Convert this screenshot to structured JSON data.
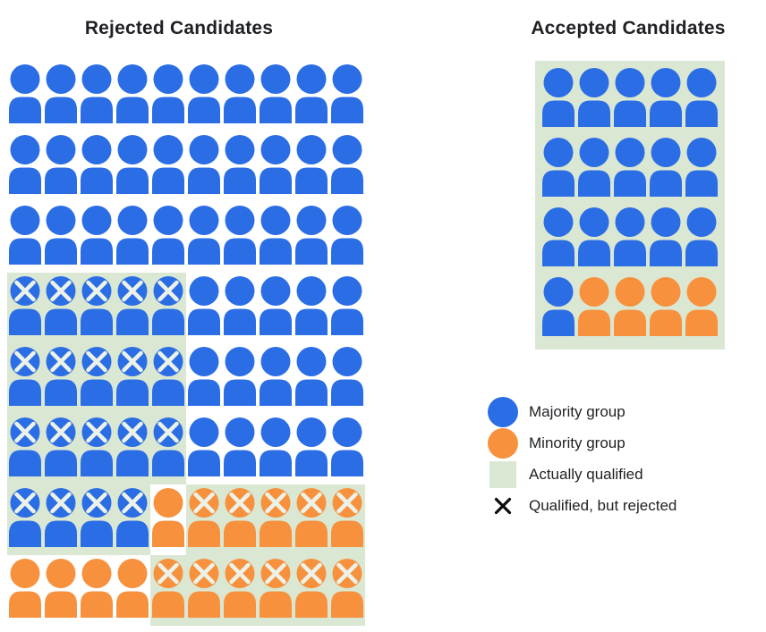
{
  "chart_data": {
    "type": "pictogram",
    "description": "Icon-array (waffle) chart comparing rejected vs accepted candidates by group membership and qualification",
    "panels": [
      {
        "key": "rejected",
        "title": "Rejected Candidates",
        "columns": 10,
        "rows": 8,
        "cell_codes": [
          [
            "b",
            "b",
            "b",
            "b",
            "b",
            "b",
            "b",
            "b",
            "b",
            "b"
          ],
          [
            "b",
            "b",
            "b",
            "b",
            "b",
            "b",
            "b",
            "b",
            "b",
            "b"
          ],
          [
            "b",
            "b",
            "b",
            "b",
            "b",
            "b",
            "b",
            "b",
            "b",
            "b"
          ],
          [
            "bqx",
            "bqx",
            "bqx",
            "bqx",
            "bqx",
            "b",
            "b",
            "b",
            "b",
            "b"
          ],
          [
            "bqx",
            "bqx",
            "bqx",
            "bqx",
            "bqx",
            "b",
            "b",
            "b",
            "b",
            "b"
          ],
          [
            "bqx",
            "bqx",
            "bqx",
            "bqx",
            "bqx",
            "b",
            "b",
            "b",
            "b",
            "b"
          ],
          [
            "bqx",
            "bqx",
            "bqx",
            "bqx",
            "o",
            "oqx",
            "oqx",
            "oqx",
            "oqx",
            "oqx"
          ],
          [
            "o",
            "o",
            "o",
            "o",
            "oqx",
            "oqx",
            "oqx",
            "oqx",
            "oqx",
            "oqx"
          ]
        ]
      },
      {
        "key": "accepted",
        "title": "Accepted Candidates",
        "columns": 5,
        "rows": 4,
        "background": "qualified_green",
        "cell_codes": [
          [
            "bq",
            "bq",
            "bq",
            "bq",
            "bq"
          ],
          [
            "bq",
            "bq",
            "bq",
            "bq",
            "bq"
          ],
          [
            "bq",
            "bq",
            "bq",
            "bq",
            "bq"
          ],
          [
            "bq",
            "oq",
            "oq",
            "oq",
            "oq"
          ]
        ]
      }
    ],
    "code_meanings": {
      "b": "majority group (blue person), not marked qualified",
      "o": "minority group (orange person), not marked qualified",
      "bq": "majority group (blue person), actually qualified",
      "oq": "minority group (orange person), actually qualified",
      "bqx": "majority group (blue person), qualified but rejected (X mark)",
      "oqx": "minority group (orange person), qualified but rejected (X mark)"
    },
    "legend": [
      {
        "key": "majority",
        "swatch": "blue-circle",
        "label": "Majority group"
      },
      {
        "key": "minority",
        "swatch": "orange-circle",
        "label": "Minority group"
      },
      {
        "key": "actually-qualified",
        "swatch": "green-square",
        "label": "Actually qualified"
      },
      {
        "key": "qualified-rejected",
        "swatch": "black-x",
        "label": "Qualified, but rejected"
      }
    ],
    "legend_position": "right, below accepted panel",
    "summary": {
      "total_candidates": 100,
      "rejected_total": 80,
      "accepted_total": 20,
      "rejected_majority": 64,
      "rejected_minority": 16,
      "accepted_majority": 16,
      "accepted_minority": 4,
      "qualified_but_rejected_majority": 19,
      "qualified_but_rejected_minority": 11,
      "accepted_all_qualified": true
    }
  },
  "colors": {
    "majority_blue": "#2B6DE5",
    "minority_orange": "#F7913D",
    "qualified_green": "#DAE7D2",
    "x_on_person": "#ECF2E7",
    "legend_x": "#0B0B0B",
    "text": "#1E2023",
    "background": "#FFFFFF"
  }
}
